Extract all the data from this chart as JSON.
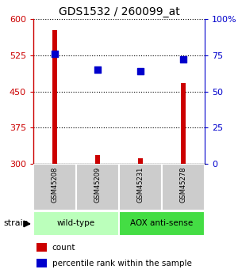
{
  "title": "GDS1532 / 260099_at",
  "samples": [
    "GSM45208",
    "GSM45209",
    "GSM45231",
    "GSM45278"
  ],
  "counts": [
    578,
    318,
    312,
    468
  ],
  "percentiles": [
    76,
    65,
    64,
    72
  ],
  "ylim_left": [
    300,
    600
  ],
  "ylim_right": [
    0,
    100
  ],
  "yticks_left": [
    300,
    375,
    450,
    525,
    600
  ],
  "yticks_right": [
    0,
    25,
    50,
    75,
    100
  ],
  "bar_color": "#cc0000",
  "dot_color": "#0000cc",
  "groups": [
    {
      "label": "wild-type",
      "indices": [
        0,
        1
      ],
      "color": "#bbffbb"
    },
    {
      "label": "AOX anti-sense",
      "indices": [
        2,
        3
      ],
      "color": "#44dd44"
    }
  ],
  "strain_label": "strain",
  "legend_count_label": "count",
  "legend_pct_label": "percentile rank within the sample",
  "bar_width": 0.12,
  "sample_box_color": "#cccccc",
  "dot_size": 30
}
